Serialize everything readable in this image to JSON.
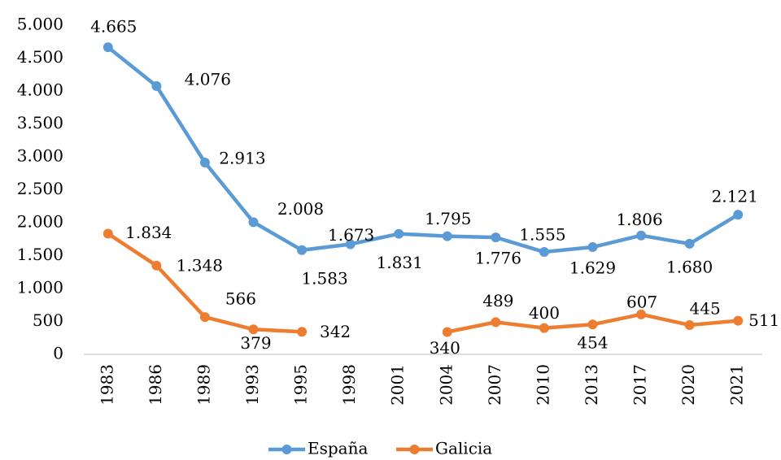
{
  "chart_data": {
    "type": "line",
    "categories": [
      "1983",
      "1986",
      "1989",
      "1993",
      "1995",
      "1998",
      "2001",
      "2004",
      "2007",
      "2010",
      "2013",
      "2017",
      "2020",
      "2021"
    ],
    "series": [
      {
        "name": "España",
        "color": "#5b9bd5",
        "values": [
          4665,
          4076,
          2913,
          2008,
          1583,
          1673,
          1831,
          1795,
          1776,
          1555,
          1629,
          1806,
          1680,
          2121
        ],
        "value_labels": [
          "4.665",
          "4.076",
          "2.913",
          "2.008",
          "1.583",
          "1.673",
          "1.831",
          "1.795",
          "1.776",
          "1.555",
          "1.629",
          "1.806",
          "1.680",
          "2.121"
        ]
      },
      {
        "name": "Galicia",
        "color": "#ed7d31",
        "values": [
          1834,
          1348,
          566,
          379,
          342,
          null,
          null,
          340,
          489,
          400,
          454,
          607,
          445,
          511
        ],
        "value_labels": [
          "1.834",
          "1.348",
          "566",
          "379",
          "342",
          null,
          null,
          "340",
          "489",
          "400",
          "454",
          "607",
          "445",
          "511"
        ]
      }
    ],
    "ylim": [
      0,
      5000
    ],
    "yticks": [
      0,
      500,
      {
        "value": 1000,
        "label": "1.000"
      },
      {
        "value": 1500,
        "label": "1.500"
      },
      {
        "value": 2000,
        "label": "2.000"
      },
      {
        "value": 2500,
        "label": "2.500"
      },
      {
        "value": 3000,
        "label": "3.000"
      },
      {
        "value": 3500,
        "label": "3.500"
      },
      {
        "value": 4000,
        "label": "4.000"
      },
      {
        "value": 4500,
        "label": "4.500"
      },
      {
        "value": 5000,
        "label": "5.000"
      }
    ],
    "grid": false,
    "legend": "bottom"
  }
}
